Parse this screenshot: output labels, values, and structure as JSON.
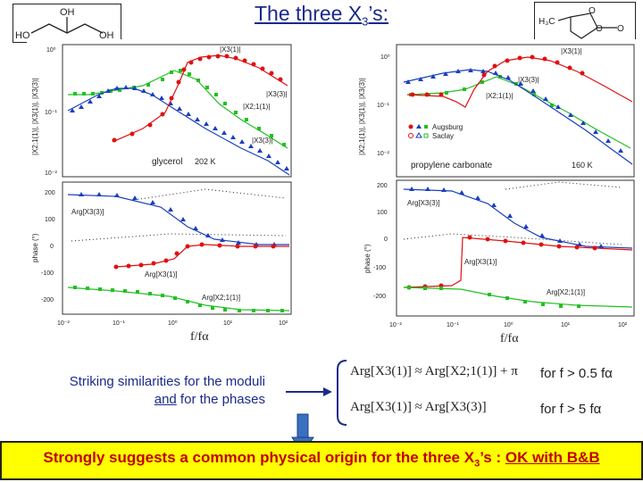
{
  "title": {
    "prefix": "The three X",
    "sub": "3",
    "suffix": "’s:"
  },
  "molecules": {
    "left": "glycerol structure",
    "right": "propylene carbonate structure"
  },
  "left_panel": {
    "top": {
      "label_sample": "glycerol",
      "label_temp": "202 K",
      "y_axis": "|X2;1(1)|, |X3(1)|, |X3(3)|",
      "ticks_y": [
        "10⁰",
        "10⁻¹",
        "10⁻²"
      ],
      "curve_labels": [
        "|X3(1)|",
        "|X3(3)|",
        "|X2;1(1)|",
        "|X3(3)|"
      ]
    },
    "bottom": {
      "y_axis": "phase (°)",
      "ticks_y": [
        "200",
        "100",
        "0",
        "-100",
        "-200"
      ],
      "curve_labels": [
        "Arg[X3(3)]",
        "Arg[X3(1)]",
        "Arg[X2;1(1)]"
      ]
    },
    "ticks_x": [
      "10⁻²",
      "10⁻¹",
      "10⁰",
      "10¹",
      "10²"
    ],
    "x_label": "f/fα"
  },
  "right_panel": {
    "top": {
      "label_sample": "propylene carbonate",
      "label_temp": "160 K",
      "y_axis": "|X2;1(1)|, |X3(1)|, |X3(3)|",
      "ticks_y": [
        "10⁰",
        "10⁻¹",
        "10⁻²"
      ],
      "legend": [
        "Augsburg",
        "Saclay"
      ],
      "curve_labels": [
        "|X3(1)|",
        "|X3(3)|",
        "|X2;1(1)|"
      ]
    },
    "bottom": {
      "y_axis": "phase (°)",
      "ticks_y": [
        "200",
        "100",
        "0",
        "-100",
        "-200"
      ],
      "curve_labels": [
        "Arg[X3(3)]",
        "Arg[X3(1)]",
        "Arg[X2;1(1)]"
      ]
    },
    "ticks_x": [
      "10⁻²",
      "10⁻¹",
      "10⁰",
      "10¹",
      "10²"
    ],
    "x_label": "f/fα"
  },
  "striking": {
    "line1": "Striking similarities for the moduli",
    "line2_and": "and",
    "line2_rest": " for the phases"
  },
  "equations": {
    "eq1": "Arg[X3(1)] ≈ Arg[X2;1(1)] + π",
    "eq1_cond": "for f > 0.5 fα",
    "eq2": "Arg[X3(1)] ≈ Arg[X3(3)]",
    "eq2_cond": "for f > 5 fα"
  },
  "banner": {
    "prefix": "Strongly suggests a common physical origin for the three X",
    "sub": "3",
    "mid": "’s : ",
    "ok": "OK with B&B"
  },
  "colors": {
    "red": "#e01010",
    "blue": "#1a3fc0",
    "green": "#22c022",
    "title": "#1a2a8a",
    "banner_bg": "#ffff00",
    "banner_text": "#c00000",
    "arrow": "#3a70c0"
  }
}
